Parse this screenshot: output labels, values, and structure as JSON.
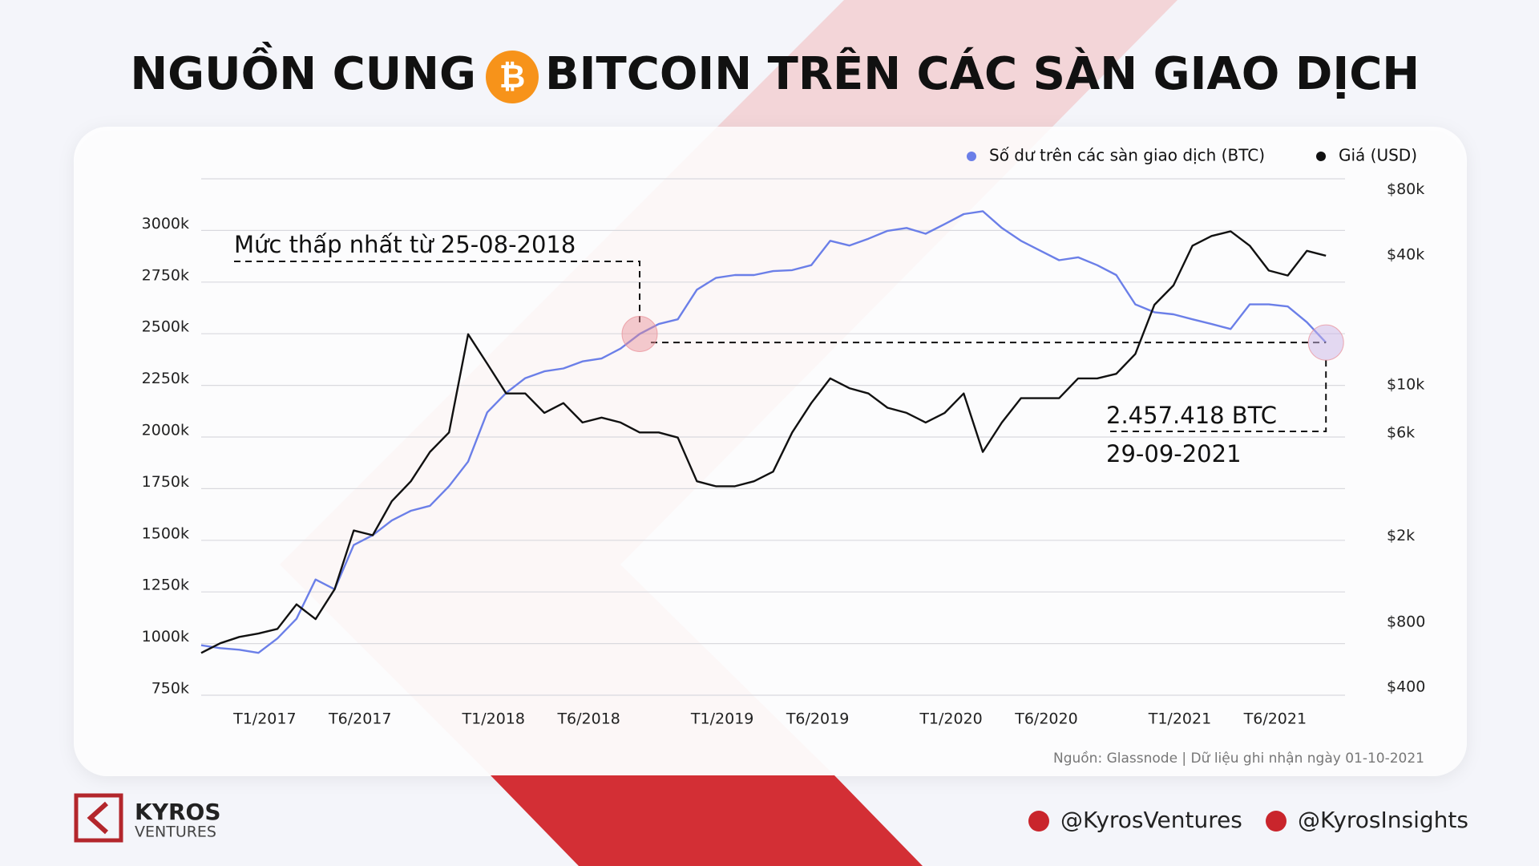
{
  "header": {
    "title_left": "NGUỒN CUNG",
    "title_right": "BITCOIN TRÊN CÁC SÀN GIAO DỊCH"
  },
  "chart_data": {
    "type": "line",
    "x": [
      "2016-10",
      "2016-11",
      "2016-12",
      "2017-01",
      "2017-02",
      "2017-03",
      "2017-04",
      "2017-05",
      "2017-06",
      "2017-07",
      "2017-08",
      "2017-09",
      "2017-10",
      "2017-11",
      "2017-12",
      "2018-01",
      "2018-02",
      "2018-03",
      "2018-04",
      "2018-05",
      "2018-06",
      "2018-07",
      "2018-08",
      "2018-09",
      "2018-10",
      "2018-11",
      "2018-12",
      "2019-01",
      "2019-02",
      "2019-03",
      "2019-04",
      "2019-05",
      "2019-06",
      "2019-07",
      "2019-08",
      "2019-09",
      "2019-10",
      "2019-11",
      "2019-12",
      "2020-01",
      "2020-02",
      "2020-03",
      "2020-04",
      "2020-05",
      "2020-06",
      "2020-07",
      "2020-08",
      "2020-09",
      "2020-10",
      "2020-11",
      "2020-12",
      "2021-01",
      "2021-02",
      "2021-03",
      "2021-04",
      "2021-05",
      "2021-06",
      "2021-07",
      "2021-08",
      "2021-09"
    ],
    "series": [
      {
        "name": "Số dư trên các sàn giao dịch (BTC)",
        "color": "#6b7fe8",
        "values": [
          992000,
          978000,
          970000,
          955000,
          1025000,
          1120000,
          1310000,
          1263000,
          1477000,
          1525000,
          1596000,
          1643000,
          1667000,
          1762000,
          1881000,
          2119000,
          2214000,
          2285000,
          2318000,
          2332000,
          2366000,
          2380000,
          2428000,
          2499000,
          2547000,
          2570000,
          2713000,
          2770000,
          2784000,
          2784000,
          2803000,
          2808000,
          2832000,
          2950000,
          2927000,
          2960000,
          2998000,
          3012000,
          2984000,
          3031000,
          3079000,
          3093000,
          3012000,
          2950000,
          2903000,
          2856000,
          2870000,
          2832000,
          2784000,
          2642000,
          2604000,
          2594000,
          2570000,
          2547000,
          2523000,
          2642000,
          2642000,
          2632000,
          2556000,
          2457418
        ]
      },
      {
        "name": "Giá (USD)",
        "color": "#111111",
        "axis": "y2",
        "values": [
          596,
          661,
          707,
          733,
          770,
          1000,
          855,
          1175,
          2197,
          2088,
          3000,
          3710,
          5070,
          6240,
          17770,
          12990,
          9450,
          9450,
          7690,
          8530,
          6940,
          7310,
          6940,
          6240,
          6240,
          5910,
          3710,
          3520,
          3520,
          3710,
          4110,
          6240,
          8530,
          11100,
          10000,
          9450,
          8120,
          7690,
          6940,
          7690,
          9450,
          5070,
          6940,
          8990,
          8990,
          8990,
          11100,
          11100,
          11650,
          14400,
          24300,
          29900,
          45600,
          50600,
          53200,
          45600,
          35000,
          33200,
          43200,
          41000
        ]
      }
    ],
    "xlim": [
      "2016-10",
      "2021-10"
    ],
    "xticks": [
      {
        "value": "2017-01",
        "label": "T1/2017"
      },
      {
        "value": "2017-06",
        "label": "T6/2017"
      },
      {
        "value": "2018-01",
        "label": "T1/2018"
      },
      {
        "value": "2018-06",
        "label": "T6/2018"
      },
      {
        "value": "2019-01",
        "label": "T1/2019"
      },
      {
        "value": "2019-06",
        "label": "T6/2019"
      },
      {
        "value": "2020-01",
        "label": "T1/2020"
      },
      {
        "value": "2020-06",
        "label": "T6/2020"
      },
      {
        "value": "2021-01",
        "label": "T1/2021"
      },
      {
        "value": "2021-06",
        "label": "T6/2021"
      }
    ],
    "ylim": [
      750000,
      3250000
    ],
    "yticks": [
      {
        "value": 750000,
        "label": "750k"
      },
      {
        "value": 1000000,
        "label": "1000k"
      },
      {
        "value": 1250000,
        "label": "1250k"
      },
      {
        "value": 1500000,
        "label": "1500k"
      },
      {
        "value": 1750000,
        "label": "1750k"
      },
      {
        "value": 2000000,
        "label": "2000k"
      },
      {
        "value": 2250000,
        "label": "2250k"
      },
      {
        "value": 2500000,
        "label": "2500k"
      },
      {
        "value": 2750000,
        "label": "2750k"
      },
      {
        "value": 3000000,
        "label": "3000k"
      }
    ],
    "y2lim": [
      380,
      93000
    ],
    "y2scale": "log",
    "y2ticks": [
      {
        "value": 400,
        "label": "$400"
      },
      {
        "value": 800,
        "label": "$800"
      },
      {
        "value": 2000,
        "label": "$2k"
      },
      {
        "value": 6000,
        "label": "$6k"
      },
      {
        "value": 10000,
        "label": "$10k"
      },
      {
        "value": 40000,
        "label": "$40k"
      },
      {
        "value": 80000,
        "label": "$80k"
      }
    ],
    "grid": true,
    "legend": "top-right",
    "annotations": [
      "Mức thấp nhất từ 25-08-2018",
      "2.457.418 BTC",
      "29-09-2021"
    ],
    "source": "Nguồn: Glassnode | Dữ liệu ghi nhận ngày 01-10-2021"
  },
  "footer": {
    "brand": "KYROS",
    "brand_sub": "VENTURES",
    "handles": [
      "@KyrosVentures",
      "@KyrosInsights"
    ]
  }
}
